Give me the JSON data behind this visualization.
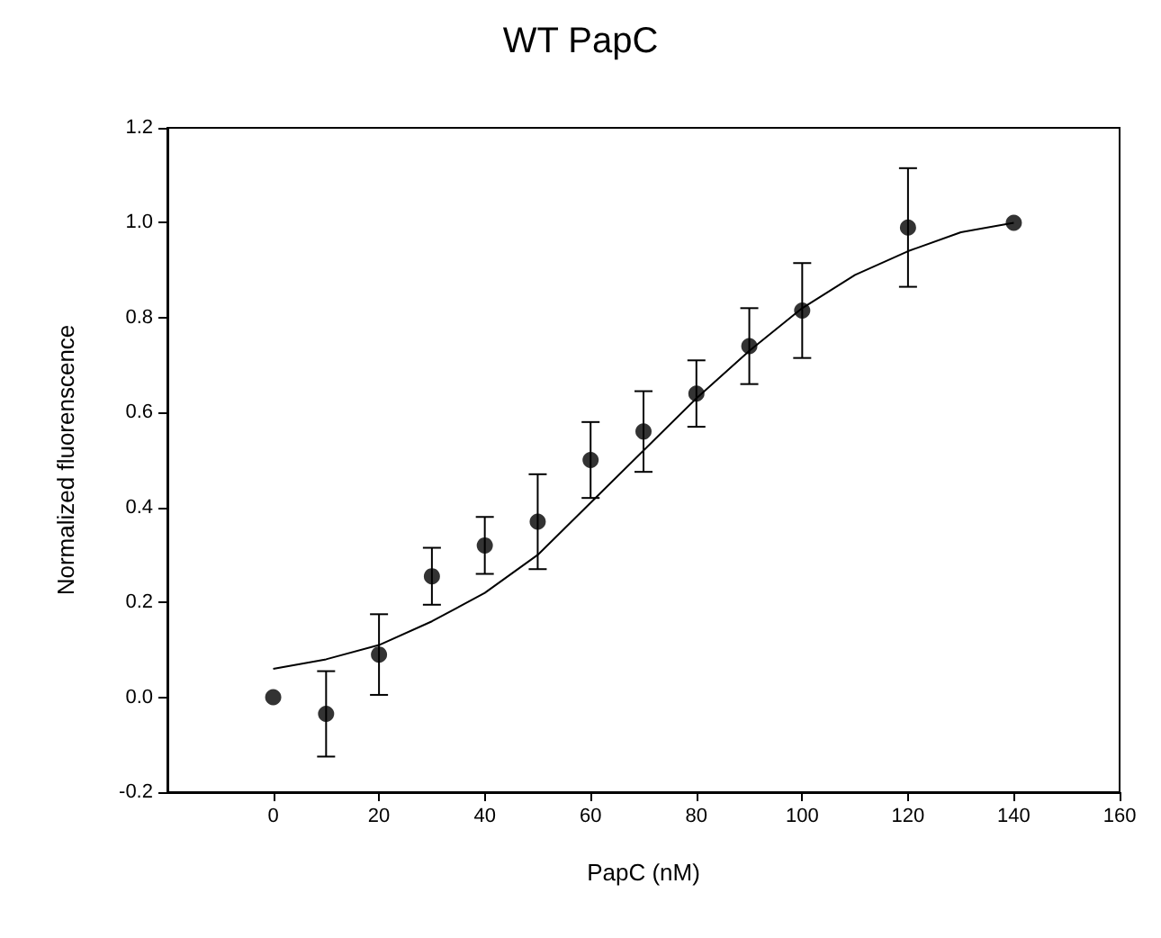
{
  "chart_data": {
    "type": "scatter",
    "title": "WT PapC",
    "xlabel": "PapC (nM)",
    "ylabel": "Normalized fluorenscence",
    "xlim": [
      -20,
      160
    ],
    "xticks": [
      0,
      20,
      40,
      60,
      80,
      100,
      120,
      140,
      160
    ],
    "ylim": [
      -0.2,
      1.2
    ],
    "yticks": [
      -0.2,
      {
        "value": 0,
        "label": "0.0"
      },
      0.2,
      0.4,
      0.6,
      0.8,
      {
        "value": 1,
        "label": "1.0"
      },
      1.2
    ],
    "marker": "circle",
    "series": [
      {
        "color": "#000000",
        "x": [
          0,
          10,
          20,
          30,
          40,
          50,
          60,
          70,
          80,
          90,
          100,
          120,
          140
        ],
        "values": [
          0.0,
          -0.035,
          0.09,
          0.255,
          0.32,
          0.37,
          0.5,
          0.56,
          0.64,
          0.74,
          0.815,
          0.99,
          1.0
        ],
        "errors": [
          null,
          0.09,
          0.085,
          0.06,
          0.06,
          0.1,
          0.08,
          0.085,
          0.07,
          0.08,
          0.1,
          0.125,
          null
        ]
      },
      {
        "type": "line",
        "color": "#000000",
        "marker": "none",
        "line_style": "solid",
        "x": [
          0,
          10,
          20,
          30,
          40,
          50,
          60,
          70,
          80,
          90,
          100,
          110,
          120,
          130,
          140
        ],
        "values": [
          0.06,
          0.08,
          0.11,
          0.16,
          0.22,
          0.3,
          0.41,
          0.52,
          0.63,
          0.73,
          0.82,
          0.89,
          0.94,
          0.98,
          1.0
        ]
      }
    ]
  }
}
